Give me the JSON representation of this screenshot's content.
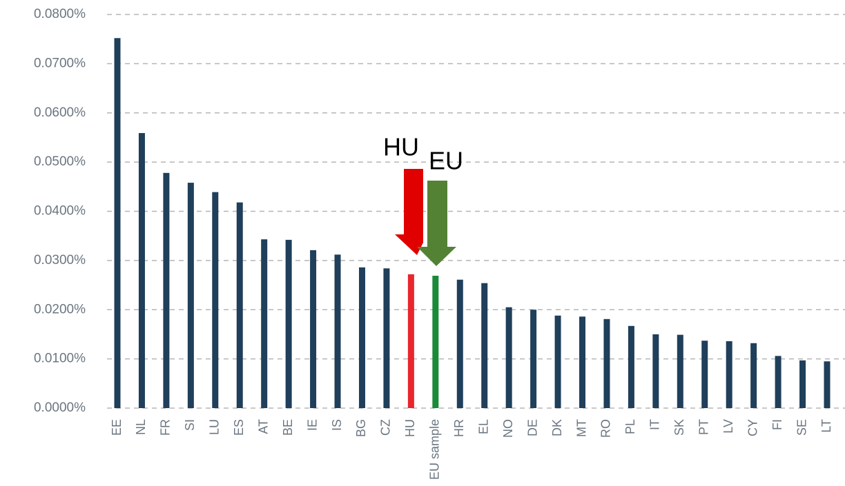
{
  "chart_data": {
    "type": "bar",
    "categories": [
      "EE",
      "NL",
      "FR",
      "SI",
      "LU",
      "ES",
      "AT",
      "BE",
      "IE",
      "IS",
      "BG",
      "CZ",
      "HU",
      "EU sample",
      "HR",
      "EL",
      "NO",
      "DE",
      "DK",
      "MT",
      "RO",
      "PL",
      "IT",
      "SK",
      "PT",
      "LV",
      "CY",
      "FI",
      "SE",
      "LT"
    ],
    "values": [
      0.0752,
      0.0559,
      0.0478,
      0.0458,
      0.0439,
      0.0418,
      0.0343,
      0.0342,
      0.0321,
      0.0312,
      0.0286,
      0.0284,
      0.0272,
      0.0269,
      0.0261,
      0.0254,
      0.0205,
      0.02,
      0.0188,
      0.0186,
      0.0181,
      0.0167,
      0.015,
      0.0149,
      0.0137,
      0.0136,
      0.0132,
      0.0106,
      0.0097,
      0.0095
    ],
    "colors": [
      "#1f3f5a",
      "#1f3f5a",
      "#1f3f5a",
      "#1f3f5a",
      "#1f3f5a",
      "#1f3f5a",
      "#1f3f5a",
      "#1f3f5a",
      "#1f3f5a",
      "#1f3f5a",
      "#1f3f5a",
      "#1f3f5a",
      "#e8262b",
      "#1a8a3a",
      "#1f3f5a",
      "#1f3f5a",
      "#1f3f5a",
      "#1f3f5a",
      "#1f3f5a",
      "#1f3f5a",
      "#1f3f5a",
      "#1f3f5a",
      "#1f3f5a",
      "#1f3f5a",
      "#1f3f5a",
      "#1f3f5a",
      "#1f3f5a",
      "#1f3f5a",
      "#1f3f5a",
      "#1f3f5a"
    ],
    "ylim": [
      0,
      0.08
    ],
    "yticks": [
      {
        "value": 0,
        "label": "0.0000%"
      },
      {
        "value": 0.01,
        "label": "0.0100%"
      },
      {
        "value": 0.02,
        "label": "0.0200%"
      },
      {
        "value": 0.03,
        "label": "0.0300%"
      },
      {
        "value": 0.04,
        "label": "0.0400%"
      },
      {
        "value": 0.05,
        "label": "0.0500%"
      },
      {
        "value": 0.06,
        "label": "0.0600%"
      },
      {
        "value": 0.07,
        "label": "0.0700%"
      },
      {
        "value": 0.08,
        "label": "0.0800%"
      }
    ],
    "grid": true,
    "annotations": [
      "HU",
      "EU"
    ]
  }
}
